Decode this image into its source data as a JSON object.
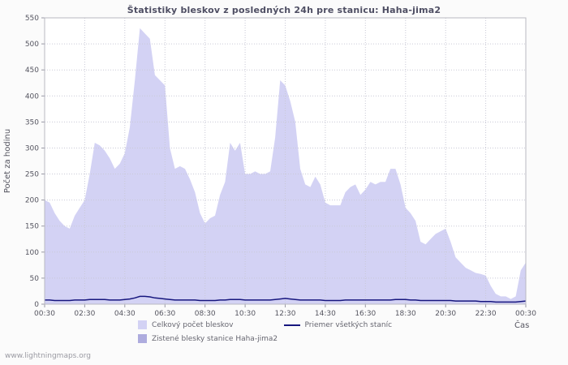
{
  "page": {
    "footer_link": "www.lightningmaps.org"
  },
  "chart_data": {
    "type": "area",
    "title": "Štatistiky bleskov z posledných 24h pre stanicu: Haha-jima2",
    "xlabel": "Čas",
    "ylabel": "Počet za hodinu",
    "ylim": [
      0,
      550
    ],
    "ytick_step": 50,
    "grid": true,
    "legend_position": "bottom",
    "sample_interval_hours": 0.25,
    "x_tick_labels": [
      "00:30",
      "02:30",
      "04:30",
      "06:30",
      "08:30",
      "10:30",
      "12:30",
      "14:30",
      "16:30",
      "18:30",
      "20:30",
      "22:30",
      "00:30"
    ],
    "series": [
      {
        "name": "Celkový počet bleskov",
        "type": "area",
        "color": "#d3d2f4",
        "values": [
          200,
          195,
          175,
          160,
          150,
          145,
          170,
          185,
          200,
          250,
          310,
          305,
          295,
          280,
          260,
          270,
          290,
          340,
          430,
          530,
          520,
          510,
          440,
          430,
          420,
          300,
          260,
          265,
          260,
          240,
          215,
          175,
          155,
          165,
          170,
          210,
          235,
          310,
          295,
          310,
          250,
          250,
          255,
          250,
          250,
          255,
          320,
          430,
          420,
          390,
          350,
          260,
          230,
          225,
          245,
          230,
          195,
          190,
          190,
          190,
          215,
          225,
          230,
          210,
          220,
          235,
          230,
          235,
          235,
          260,
          260,
          230,
          185,
          175,
          160,
          120,
          115,
          125,
          135,
          140,
          145,
          120,
          90,
          80,
          70,
          65,
          60,
          58,
          55,
          35,
          20,
          15,
          15,
          10,
          15,
          65,
          80
        ]
      },
      {
        "name": "Zistené blesky stanice Haha-jima2",
        "type": "area",
        "color": "#aeacde",
        "values": [
          0,
          0,
          0,
          0,
          0,
          0,
          0,
          0,
          0,
          0,
          0,
          0,
          0,
          0,
          0,
          0,
          0,
          0,
          0,
          0,
          0,
          0,
          0,
          0,
          0,
          0,
          0,
          0,
          0,
          0,
          0,
          0,
          0,
          0,
          0,
          0,
          0,
          0,
          0,
          0,
          0,
          0,
          0,
          0,
          0,
          0,
          0,
          0,
          0,
          0,
          0,
          0,
          0,
          0,
          0,
          0,
          0,
          0,
          0,
          0,
          0,
          0,
          0,
          0,
          0,
          0,
          0,
          0,
          0,
          0,
          0,
          0,
          0,
          0,
          0,
          0,
          0,
          0,
          0,
          0,
          0,
          0,
          0,
          0,
          0,
          0,
          0,
          0,
          0,
          0,
          0,
          0,
          0,
          0,
          0,
          0,
          0
        ]
      },
      {
        "name": "Priemer všetkých staníc",
        "type": "line",
        "color": "#16167e",
        "values": [
          8,
          8,
          7,
          7,
          7,
          7,
          8,
          8,
          8,
          9,
          9,
          9,
          9,
          8,
          8,
          8,
          9,
          10,
          12,
          15,
          15,
          14,
          12,
          11,
          10,
          9,
          8,
          8,
          8,
          8,
          8,
          7,
          7,
          7,
          7,
          8,
          8,
          9,
          9,
          9,
          8,
          8,
          8,
          8,
          8,
          8,
          9,
          10,
          11,
          10,
          9,
          8,
          8,
          8,
          8,
          8,
          7,
          7,
          7,
          7,
          8,
          8,
          8,
          8,
          8,
          8,
          8,
          8,
          8,
          8,
          9,
          9,
          9,
          8,
          8,
          7,
          7,
          7,
          7,
          7,
          7,
          7,
          6,
          6,
          6,
          6,
          6,
          5,
          5,
          5,
          4,
          4,
          4,
          4,
          4,
          5,
          6
        ]
      }
    ]
  }
}
